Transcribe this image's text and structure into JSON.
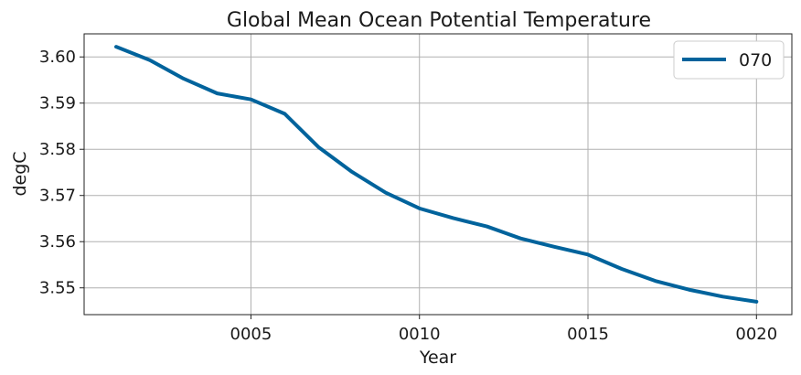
{
  "chart_data": {
    "type": "line",
    "title": "Global Mean Ocean Potential Temperature",
    "xlabel": "Year",
    "ylabel": "degC",
    "x": [
      1,
      2,
      3,
      4,
      5,
      6,
      7,
      8,
      9,
      10,
      11,
      12,
      13,
      14,
      15,
      16,
      17,
      18,
      19,
      20
    ],
    "xlim": [
      0.05,
      21.05
    ],
    "ylim": [
      3.5442,
      3.605
    ],
    "x_ticks": [
      {
        "value": 5,
        "label": "0005"
      },
      {
        "value": 10,
        "label": "0010"
      },
      {
        "value": 15,
        "label": "0015"
      },
      {
        "value": 20,
        "label": "0020"
      }
    ],
    "y_ticks": [
      {
        "value": 3.55,
        "label": "3.55"
      },
      {
        "value": 3.56,
        "label": "3.56"
      },
      {
        "value": 3.57,
        "label": "3.57"
      },
      {
        "value": 3.58,
        "label": "3.58"
      },
      {
        "value": 3.59,
        "label": "3.59"
      },
      {
        "value": 3.6,
        "label": "3.60"
      }
    ],
    "series": [
      {
        "name": "070",
        "color": "#00639c",
        "values": [
          3.6022,
          3.5993,
          3.5953,
          3.5921,
          3.5908,
          3.5877,
          3.5805,
          3.5751,
          3.5706,
          3.5672,
          3.5651,
          3.5633,
          3.5607,
          3.5589,
          3.5572,
          3.5541,
          3.5515,
          3.5496,
          3.5481,
          3.547
        ]
      }
    ],
    "grid": true,
    "legend_position": "top-right"
  }
}
